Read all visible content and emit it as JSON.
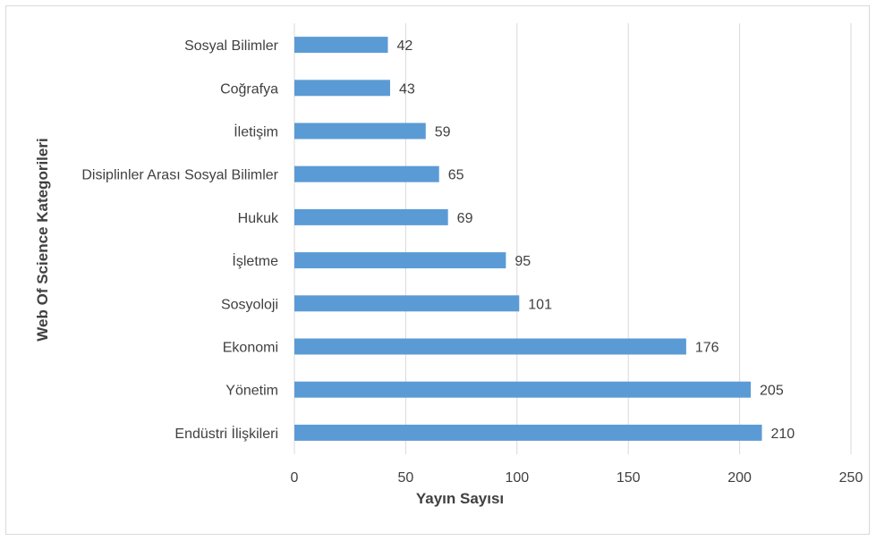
{
  "chart_data": {
    "type": "bar",
    "orientation": "horizontal",
    "title": "",
    "xlabel": "Yayın Sayısı",
    "ylabel": "Web Of Science Kategorileri",
    "categories": [
      "Sosyal Bilimler",
      "Coğrafya",
      "İletişim",
      "Disiplinler Arası Sosyal Bilimler",
      "Hukuk",
      "İşletme",
      "Sosyoloji",
      "Ekonomi",
      "Yönetim",
      "Endüstri İlişkileri"
    ],
    "values": [
      42,
      43,
      59,
      65,
      69,
      95,
      101,
      176,
      205,
      210
    ],
    "xlim": [
      0,
      250
    ],
    "xticks": [
      0,
      50,
      100,
      150,
      200,
      250
    ],
    "grid": true,
    "legend": "none",
    "bar_color": "#5b9bd5",
    "data_labels": true
  }
}
